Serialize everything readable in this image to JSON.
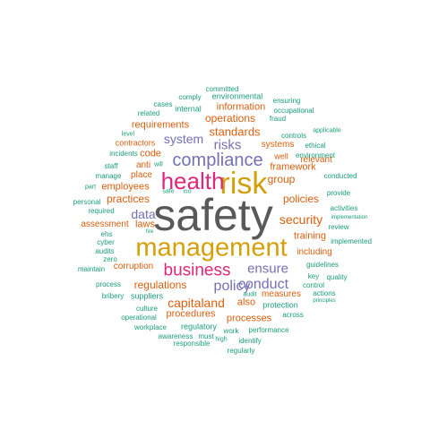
{
  "colors": {
    "dark": "#595959",
    "gold": "#d4a00a",
    "magenta": "#e0287b",
    "orange": "#d95f0e",
    "purple": "#7570b3",
    "teal": "#1b9e77"
  },
  "words": [
    {
      "text": "safety",
      "color": "dark"
    },
    {
      "text": "risk",
      "color": "gold"
    },
    {
      "text": "health",
      "color": "magenta"
    },
    {
      "text": "management",
      "color": "gold"
    },
    {
      "text": "compliance",
      "color": "purple"
    },
    {
      "text": "business",
      "color": "magenta"
    },
    {
      "text": "policy",
      "color": "purple"
    },
    {
      "text": "conduct",
      "color": "purple"
    },
    {
      "text": "ensure",
      "color": "purple"
    },
    {
      "text": "risks",
      "color": "purple"
    },
    {
      "text": "system",
      "color": "purple"
    },
    {
      "text": "data",
      "color": "purple"
    },
    {
      "text": "capitaland",
      "color": "orange"
    },
    {
      "text": "security",
      "color": "orange"
    },
    {
      "text": "standards",
      "color": "orange"
    },
    {
      "text": "operations",
      "color": "orange"
    },
    {
      "text": "information",
      "color": "orange"
    },
    {
      "text": "practices",
      "color": "orange"
    },
    {
      "text": "policies",
      "color": "orange"
    },
    {
      "text": "regulations",
      "color": "orange"
    },
    {
      "text": "group",
      "color": "orange"
    },
    {
      "text": "processes",
      "color": "orange"
    },
    {
      "text": "procedures",
      "color": "orange"
    },
    {
      "text": "requirements",
      "color": "orange"
    },
    {
      "text": "code",
      "color": "orange"
    },
    {
      "text": "employees",
      "color": "orange"
    },
    {
      "text": "laws",
      "color": "orange"
    },
    {
      "text": "training",
      "color": "orange"
    },
    {
      "text": "framework",
      "color": "orange"
    },
    {
      "text": "systems",
      "color": "orange"
    },
    {
      "text": "also",
      "color": "orange"
    },
    {
      "text": "place",
      "color": "orange"
    },
    {
      "text": "anti",
      "color": "orange"
    },
    {
      "text": "corruption",
      "color": "orange"
    },
    {
      "text": "assessment",
      "color": "orange"
    },
    {
      "text": "relevant",
      "color": "orange"
    },
    {
      "text": "including",
      "color": "orange"
    },
    {
      "text": "measures",
      "color": "orange"
    },
    {
      "text": "contractors",
      "color": "orange"
    },
    {
      "text": "well",
      "color": "orange"
    },
    {
      "text": "regulatory",
      "color": "teal"
    },
    {
      "text": "protection",
      "color": "teal"
    },
    {
      "text": "suppliers",
      "color": "teal"
    },
    {
      "text": "internal",
      "color": "teal"
    },
    {
      "text": "comply",
      "color": "teal"
    },
    {
      "text": "environmental",
      "color": "teal"
    },
    {
      "text": "committed",
      "color": "teal"
    },
    {
      "text": "ensuring",
      "color": "teal"
    },
    {
      "text": "occupational",
      "color": "teal"
    },
    {
      "text": "fraud",
      "color": "teal"
    },
    {
      "text": "controls",
      "color": "teal"
    },
    {
      "text": "cases",
      "color": "teal"
    },
    {
      "text": "related",
      "color": "teal"
    },
    {
      "text": "level",
      "color": "teal"
    },
    {
      "text": "incidents",
      "color": "teal"
    },
    {
      "text": "applicable",
      "color": "teal"
    },
    {
      "text": "ethical",
      "color": "teal"
    },
    {
      "text": "environment",
      "color": "teal"
    },
    {
      "text": "staff",
      "color": "teal"
    },
    {
      "text": "manage",
      "color": "teal"
    },
    {
      "text": "will",
      "color": "teal"
    },
    {
      "text": "part",
      "color": "teal"
    },
    {
      "text": "personal",
      "color": "teal"
    },
    {
      "text": "required",
      "color": "teal"
    },
    {
      "text": "safe",
      "color": "teal"
    },
    {
      "text": "iso",
      "color": "teal"
    },
    {
      "text": "conducted",
      "color": "teal"
    },
    {
      "text": "provide",
      "color": "teal"
    },
    {
      "text": "activities",
      "color": "teal"
    },
    {
      "text": "implementation",
      "color": "teal"
    },
    {
      "text": "review",
      "color": "teal"
    },
    {
      "text": "implemented",
      "color": "teal"
    },
    {
      "text": "ehs",
      "color": "teal"
    },
    {
      "text": "cyber",
      "color": "teal"
    },
    {
      "text": "audits",
      "color": "teal"
    },
    {
      "text": "zero",
      "color": "teal"
    },
    {
      "text": "fire",
      "color": "teal"
    },
    {
      "text": "maintain",
      "color": "teal"
    },
    {
      "text": "guidelines",
      "color": "teal"
    },
    {
      "text": "key",
      "color": "teal"
    },
    {
      "text": "quality",
      "color": "teal"
    },
    {
      "text": "control",
      "color": "teal"
    },
    {
      "text": "actions",
      "color": "teal"
    },
    {
      "text": "principles",
      "color": "teal"
    },
    {
      "text": "process",
      "color": "teal"
    },
    {
      "text": "bribery",
      "color": "teal"
    },
    {
      "text": "culture",
      "color": "teal"
    },
    {
      "text": "operational",
      "color": "teal"
    },
    {
      "text": "audit",
      "color": "teal"
    },
    {
      "text": "across",
      "color": "teal"
    },
    {
      "text": "workplace",
      "color": "teal"
    },
    {
      "text": "awareness",
      "color": "teal"
    },
    {
      "text": "must",
      "color": "teal"
    },
    {
      "text": "work",
      "color": "teal"
    },
    {
      "text": "performance",
      "color": "teal"
    },
    {
      "text": "high",
      "color": "teal"
    },
    {
      "text": "identify",
      "color": "teal"
    },
    {
      "text": "responsible",
      "color": "teal"
    },
    {
      "text": "regularly",
      "color": "teal"
    }
  ]
}
